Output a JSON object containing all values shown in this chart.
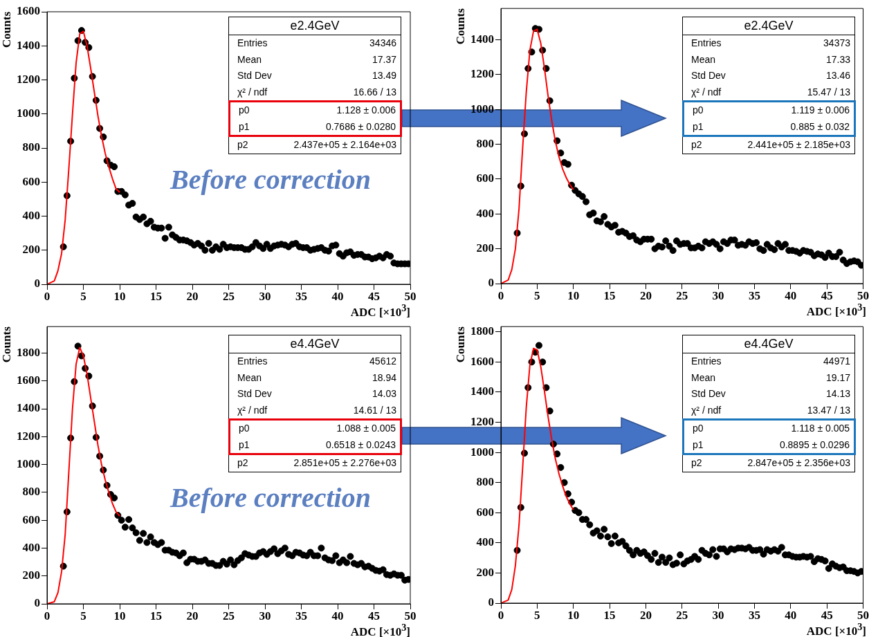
{
  "chart_data": [
    {
      "type": "scatter",
      "xlabel": "ADC [×10$^{3}$]",
      "ylabel": "Counts",
      "xlim": [
        0,
        50
      ],
      "ylim": [
        0,
        1600
      ],
      "xticks": [
        0,
        5,
        10,
        15,
        20,
        25,
        30,
        35,
        40,
        45,
        50
      ],
      "yticks": [
        0,
        200,
        400,
        600,
        800,
        1000,
        1200,
        1400,
        1600
      ],
      "marker": "circle",
      "annotations": [
        "e2.4GeV",
        "Entries",
        "34346",
        "Mean",
        "17.37",
        "Std Dev",
        "13.49",
        "χ² / ndf",
        "16.66 / 13",
        "p0",
        "1.128 ± 0.006",
        "p1",
        "0.7686 ± 0.0280",
        "p2",
        "2.437e+05 ± 2.164e+03",
        "Before correction"
      ],
      "series": [
        {
          "type": "scatter",
          "color": "#000000",
          "x": [
            2.25,
            2.75,
            3.25,
            3.75,
            4.25,
            4.75,
            5.25,
            5.75,
            6.25,
            6.75,
            7.25,
            7.75,
            8.25,
            8.75,
            9.25,
            9.75,
            10.25,
            10.75,
            11.25,
            11.75,
            12.25,
            12.75,
            13.25,
            13.75,
            14.25,
            14.75,
            15.25,
            15.75,
            16.25,
            16.75,
            17.25,
            17.75,
            18.25,
            18.75,
            19.25,
            19.75,
            20.25,
            20.75,
            21.25,
            21.75,
            22.25,
            22.75,
            23.25,
            23.75,
            24.25,
            24.75,
            25.25,
            25.75,
            26.25,
            26.75,
            27.25,
            27.75,
            28.25,
            28.75,
            29.25,
            29.75,
            30.25,
            30.75,
            31.25,
            31.75,
            32.25,
            32.75,
            33.25,
            33.75,
            34.25,
            34.75,
            35.25,
            35.75,
            36.25,
            36.75,
            37.25,
            37.75,
            38.25,
            38.75,
            39.25,
            39.75,
            40.25,
            40.75,
            41.25,
            41.75,
            42.25,
            42.75,
            43.25,
            43.75,
            44.25,
            44.75,
            45.25,
            45.75,
            46.25,
            46.75,
            47.25,
            47.75,
            48.25,
            48.75,
            49.25,
            49.75
          ],
          "values": [
            220,
            520,
            840,
            1210,
            1430,
            1490,
            1420,
            1390,
            1220,
            1080,
            915,
            865,
            725,
            700,
            690,
            545,
            545,
            525,
            465,
            475,
            395,
            380,
            395,
            355,
            370,
            335,
            330,
            330,
            270,
            335,
            290,
            275,
            260,
            260,
            255,
            245,
            230,
            240,
            225,
            200,
            240,
            200,
            220,
            205,
            235,
            215,
            220,
            215,
            215,
            215,
            205,
            205,
            220,
            245,
            225,
            210,
            235,
            210,
            225,
            230,
            235,
            230,
            220,
            235,
            240,
            220,
            215,
            215,
            200,
            205,
            210,
            215,
            200,
            195,
            225,
            230,
            180,
            165,
            185,
            190,
            170,
            175,
            175,
            160,
            160,
            150,
            155,
            165,
            155,
            175,
            165,
            125,
            120,
            120,
            120,
            120
          ]
        },
        {
          "type": "line",
          "color": "#ff0000",
          "marker": "none",
          "x": [
            0,
            1,
            1.5,
            2,
            2.5,
            3,
            3.5,
            4,
            4.5,
            5,
            5.5,
            6,
            6.5,
            7,
            7.5,
            8,
            8.5,
            9,
            9.5,
            10
          ],
          "values": [
            0,
            20,
            80,
            180,
            380,
            680,
            1000,
            1300,
            1470,
            1485,
            1400,
            1270,
            1130,
            990,
            870,
            770,
            690,
            620,
            560,
            540
          ]
        }
      ]
    },
    {
      "type": "scatter",
      "xlabel": "ADC [×10$^{3}$]",
      "ylabel": "Counts",
      "xlim": [
        0,
        50
      ],
      "ylim": [
        0,
        1580
      ],
      "xticks": [
        0,
        5,
        10,
        15,
        20,
        25,
        30,
        35,
        40,
        45,
        50
      ],
      "yticks": [
        0,
        200,
        400,
        600,
        800,
        1000,
        1200,
        1400
      ],
      "marker": "circle",
      "annotations": [
        "e2.4GeV",
        "Entries",
        "34373",
        "Mean",
        "17.33",
        "Std Dev",
        "13.46",
        "χ² / ndf",
        "15.47 / 13",
        "p0",
        "1.119 ± 0.006",
        "p1",
        "0.885 ± 0.032",
        "p2",
        "2.441e+05 ± 2.185e+03"
      ],
      "series": [
        {
          "type": "scatter",
          "color": "#000000",
          "x": [
            2.25,
            2.75,
            3.25,
            3.75,
            4.25,
            4.75,
            5.25,
            5.75,
            6.25,
            6.75,
            7.25,
            7.75,
            8.25,
            8.75,
            9.25,
            9.75,
            10.25,
            10.75,
            11.25,
            11.75,
            12.25,
            12.75,
            13.25,
            13.75,
            14.25,
            14.75,
            15.25,
            15.75,
            16.25,
            16.75,
            17.25,
            17.75,
            18.25,
            18.75,
            19.25,
            19.75,
            20.25,
            20.75,
            21.25,
            21.75,
            22.25,
            22.75,
            23.25,
            23.75,
            24.25,
            24.75,
            25.25,
            25.75,
            26.25,
            26.75,
            27.25,
            27.75,
            28.25,
            28.75,
            29.25,
            29.75,
            30.25,
            30.75,
            31.25,
            31.75,
            32.25,
            32.75,
            33.25,
            33.75,
            34.25,
            34.75,
            35.25,
            35.75,
            36.25,
            36.75,
            37.25,
            37.75,
            38.25,
            38.75,
            39.25,
            39.75,
            40.25,
            40.75,
            41.25,
            41.75,
            42.25,
            42.75,
            43.25,
            43.75,
            44.25,
            44.75,
            45.25,
            45.75,
            46.25,
            46.75,
            47.25,
            47.75,
            48.25,
            48.75,
            49.25,
            49.75
          ],
          "values": [
            290,
            560,
            860,
            1235,
            1330,
            1465,
            1460,
            1340,
            1235,
            1050,
            null,
            820,
            750,
            695,
            685,
            565,
            535,
            515,
            500,
            470,
            395,
            405,
            360,
            355,
            385,
            340,
            325,
            335,
            295,
            300,
            290,
            270,
            275,
            250,
            240,
            255,
            255,
            255,
            200,
            215,
            210,
            245,
            215,
            190,
            245,
            225,
            230,
            230,
            205,
            205,
            215,
            205,
            240,
            230,
            240,
            225,
            200,
            240,
            230,
            250,
            250,
            220,
            225,
            220,
            240,
            230,
            235,
            200,
            190,
            225,
            205,
            195,
            230,
            210,
            225,
            190,
            190,
            185,
            175,
            190,
            185,
            180,
            160,
            170,
            165,
            150,
            175,
            155,
            155,
            180,
            135,
            115,
            125,
            130,
            125,
            105
          ]
        },
        {
          "type": "line",
          "color": "#ff0000",
          "marker": "none",
          "x": [
            0,
            1,
            1.5,
            2,
            2.5,
            3,
            3.5,
            4,
            4.5,
            5,
            5.5,
            6,
            6.5,
            7,
            7.5,
            8,
            8.5,
            9,
            9.5,
            10
          ],
          "values": [
            0,
            20,
            80,
            200,
            430,
            780,
            1100,
            1340,
            1450,
            1460,
            1380,
            1240,
            1080,
            940,
            820,
            730,
            660,
            610,
            570,
            540
          ]
        }
      ]
    },
    {
      "type": "scatter",
      "xlabel": "ADC [×10$^{3}$]",
      "ylabel": "Counts",
      "xlim": [
        0,
        50
      ],
      "ylim": [
        0,
        1990
      ],
      "xticks": [
        0,
        5,
        10,
        15,
        20,
        25,
        30,
        35,
        40,
        45,
        50
      ],
      "yticks": [
        0,
        200,
        400,
        600,
        800,
        1000,
        1200,
        1400,
        1600,
        1800
      ],
      "marker": "circle",
      "annotations": [
        "e4.4GeV",
        "Entries",
        "45612",
        "Mean",
        "18.94",
        "Std Dev",
        "14.03",
        "χ² / ndf",
        "14.61 / 13",
        "p0",
        "1.088 ± 0.005",
        "p1",
        "0.6518 ± 0.0243",
        "p2",
        "2.851e+05 ± 2.276e+03",
        "Before correction"
      ],
      "series": [
        {
          "type": "scatter",
          "color": "#000000",
          "x": [
            2.25,
            2.75,
            3.25,
            3.75,
            4.25,
            4.75,
            5.25,
            5.75,
            6.25,
            6.75,
            7.25,
            7.75,
            8.25,
            8.75,
            9.25,
            9.75,
            10.25,
            10.75,
            11.25,
            11.75,
            12.25,
            12.75,
            13.25,
            13.75,
            14.25,
            14.75,
            15.25,
            15.75,
            16.25,
            16.75,
            17.25,
            17.75,
            18.25,
            18.75,
            19.25,
            19.75,
            20.25,
            20.75,
            21.25,
            21.75,
            22.25,
            22.75,
            23.25,
            23.75,
            24.25,
            24.75,
            25.25,
            25.75,
            26.25,
            26.75,
            27.25,
            27.75,
            28.25,
            28.75,
            29.25,
            29.75,
            30.25,
            30.75,
            31.25,
            31.75,
            32.25,
            32.75,
            33.25,
            33.75,
            34.25,
            34.75,
            35.25,
            35.75,
            36.25,
            36.75,
            37.25,
            37.75,
            38.25,
            38.75,
            39.25,
            39.75,
            40.25,
            40.75,
            41.25,
            41.75,
            42.25,
            42.75,
            43.25,
            43.75,
            44.25,
            44.75,
            45.25,
            45.75,
            46.25,
            46.75,
            47.25,
            47.75,
            48.25,
            48.75,
            49.25,
            49.75
          ],
          "values": [
            270,
            660,
            1190,
            1595,
            1850,
            1780,
            1690,
            1635,
            1420,
            1195,
            1060,
            960,
            850,
            785,
            760,
            635,
            600,
            550,
            605,
            545,
            510,
            455,
            505,
            440,
            480,
            440,
            425,
            440,
            385,
            385,
            370,
            365,
            345,
            365,
            295,
            320,
            320,
            305,
            305,
            315,
            290,
            290,
            275,
            275,
            305,
            285,
            315,
            280,
            310,
            330,
            360,
            350,
            340,
            340,
            365,
            375,
            355,
            375,
            395,
            360,
            380,
            400,
            355,
            345,
            370,
            365,
            350,
            345,
            370,
            345,
            345,
            400,
            330,
            315,
            310,
            345,
            295,
            315,
            295,
            340,
            290,
            280,
            290,
            265,
            270,
            255,
            240,
            235,
            245,
            210,
            205,
            215,
            205,
            205,
            170,
            175
          ]
        },
        {
          "type": "line",
          "color": "#ff0000",
          "marker": "none",
          "x": [
            0,
            1,
            1.5,
            2,
            2.5,
            3,
            3.5,
            4,
            4.5,
            5,
            5.5,
            6,
            6.5,
            7,
            7.5,
            8,
            8.5,
            9,
            9.5,
            10
          ],
          "values": [
            0,
            15,
            80,
            230,
            500,
            950,
            1400,
            1720,
            1840,
            1780,
            1650,
            1480,
            1310,
            1140,
            1000,
            890,
            800,
            720,
            660,
            630
          ]
        }
      ]
    },
    {
      "type": "scatter",
      "xlabel": "ADC [×10$^{3}$]",
      "ylabel": "Counts",
      "xlim": [
        0,
        50
      ],
      "ylim": [
        0,
        1835
      ],
      "xticks": [
        0,
        5,
        10,
        15,
        20,
        25,
        30,
        35,
        40,
        45,
        50
      ],
      "yticks": [
        0,
        200,
        400,
        600,
        800,
        1000,
        1200,
        1400,
        1600,
        1800
      ],
      "marker": "circle",
      "annotations": [
        "e4.4GeV",
        "Entries",
        "44971",
        "Mean",
        "19.17",
        "Std Dev",
        "14.13",
        "χ² / ndf",
        "13.47 / 13",
        "p0",
        "1.118 ± 0.005",
        "p1",
        "0.8895 ± 0.0296",
        "p2",
        "2.847e+05 ± 2.356e+03"
      ],
      "series": [
        {
          "type": "scatter",
          "color": "#000000",
          "x": [
            2.25,
            2.75,
            3.25,
            3.75,
            4.25,
            4.75,
            5.25,
            5.75,
            6.25,
            6.75,
            7.25,
            7.75,
            8.25,
            8.75,
            9.25,
            9.75,
            10.25,
            10.75,
            11.25,
            11.75,
            12.25,
            12.75,
            13.25,
            13.75,
            14.25,
            14.75,
            15.25,
            15.75,
            16.25,
            16.75,
            17.25,
            17.75,
            18.25,
            18.75,
            19.25,
            19.75,
            20.25,
            20.75,
            21.25,
            21.75,
            22.25,
            22.75,
            23.25,
            23.75,
            24.25,
            24.75,
            25.25,
            25.75,
            26.25,
            26.75,
            27.25,
            27.75,
            28.25,
            28.75,
            29.25,
            29.75,
            30.25,
            30.75,
            31.25,
            31.75,
            32.25,
            32.75,
            33.25,
            33.75,
            34.25,
            34.75,
            35.25,
            35.75,
            36.25,
            36.75,
            37.25,
            37.75,
            38.25,
            38.75,
            39.25,
            39.75,
            40.25,
            40.75,
            41.25,
            41.75,
            42.25,
            42.75,
            43.25,
            43.75,
            44.25,
            44.75,
            45.25,
            45.75,
            46.25,
            46.75,
            47.25,
            47.75,
            48.25,
            48.75,
            49.25,
            49.75
          ],
          "values": [
            350,
            635,
            995,
            1430,
            1600,
            1665,
            1710,
            1600,
            1430,
            1275,
            1055,
            990,
            900,
            800,
            725,
            670,
            615,
            600,
            555,
            555,
            520,
            465,
            480,
            445,
            490,
            440,
            395,
            445,
            400,
            410,
            380,
            350,
            320,
            350,
            330,
            340,
            315,
            290,
            330,
            270,
            305,
            270,
            300,
            255,
            265,
            320,
            260,
            280,
            290,
            310,
            290,
            350,
            330,
            320,
            355,
            310,
            360,
            360,
            340,
            360,
            355,
            365,
            365,
            360,
            370,
            350,
            350,
            355,
            325,
            355,
            345,
            355,
            345,
            370,
            320,
            320,
            310,
            305,
            305,
            310,
            305,
            310,
            275,
            295,
            290,
            280,
            230,
            260,
            245,
            235,
            240,
            215,
            215,
            210,
            200,
            210
          ]
        },
        {
          "type": "line",
          "color": "#ff0000",
          "marker": "none",
          "x": [
            0,
            1,
            1.5,
            2,
            2.5,
            3,
            3.5,
            4,
            4.5,
            5,
            5.5,
            6,
            6.5,
            7,
            7.5,
            8,
            8.5,
            9,
            9.5,
            10
          ],
          "values": [
            0,
            20,
            90,
            250,
            520,
            900,
            1300,
            1580,
            1690,
            1680,
            1570,
            1410,
            1240,
            1090,
            960,
            860,
            780,
            710,
            660,
            620
          ]
        }
      ]
    }
  ]
}
